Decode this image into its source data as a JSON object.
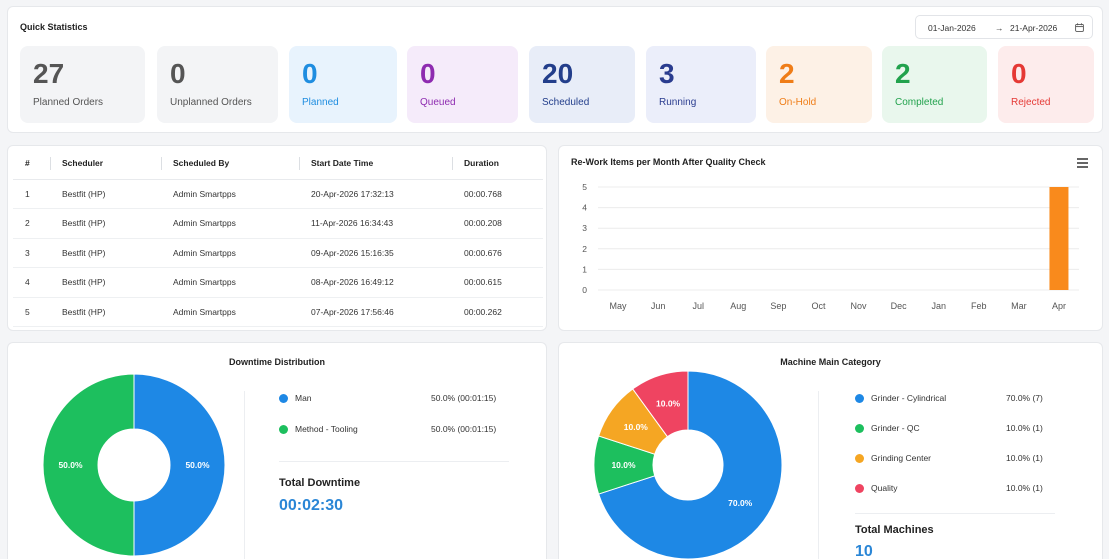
{
  "quick_stats": {
    "title": "Quick Statistics",
    "date_from": "01-Jan-2026",
    "arrow": "→",
    "date_to": "21-Apr-2026",
    "tiles": [
      {
        "value": "27",
        "label": "Planned Orders",
        "color": "#555555",
        "bg": "#f3f4f6"
      },
      {
        "value": "0",
        "label": "Unplanned Orders",
        "color": "#555555",
        "bg": "#f3f4f6"
      },
      {
        "value": "0",
        "label": "Planned",
        "color": "#1f8de0",
        "bg": "#e8f3fd"
      },
      {
        "value": "0",
        "label": "Queued",
        "color": "#8e2bb0",
        "bg": "#f5ebfa"
      },
      {
        "value": "20",
        "label": "Scheduled",
        "color": "#233e8b",
        "bg": "#e8edf8"
      },
      {
        "value": "3",
        "label": "Running",
        "color": "#2a3c8f",
        "bg": "#ebeefa"
      },
      {
        "value": "2",
        "label": "On-Hold",
        "color": "#ef7d18",
        "bg": "#fdf1e6"
      },
      {
        "value": "2",
        "label": "Completed",
        "color": "#22a24d",
        "bg": "#e9f7ed"
      },
      {
        "value": "0",
        "label": "Rejected",
        "color": "#e53935",
        "bg": "#fdecec"
      }
    ]
  },
  "scheduler_table": {
    "headers": [
      "#",
      "Scheduler",
      "Scheduled By",
      "Start Date Time",
      "Duration"
    ],
    "rows": [
      [
        "1",
        "Bestfit (HP)",
        "Admin Smartpps",
        "20-Apr-2026 17:32:13",
        "00:00.768"
      ],
      [
        "2",
        "Bestfit (HP)",
        "Admin Smartpps",
        "11-Apr-2026 16:34:43",
        "00:00.208"
      ],
      [
        "3",
        "Bestfit (HP)",
        "Admin Smartpps",
        "09-Apr-2026 15:16:35",
        "00:00.676"
      ],
      [
        "4",
        "Bestfit (HP)",
        "Admin Smartpps",
        "08-Apr-2026 16:49:12",
        "00:00.615"
      ],
      [
        "5",
        "Bestfit (HP)",
        "Admin Smartpps",
        "07-Apr-2026 17:56:46",
        "00:00.262"
      ]
    ]
  },
  "rework_chart": {
    "menu_icon": "hamburger-menu-icon",
    "chart_data": {
      "type": "bar",
      "title": "Re-Work Items per Month After Quality Check",
      "categories": [
        "May",
        "Jun",
        "Jul",
        "Aug",
        "Sep",
        "Oct",
        "Nov",
        "Dec",
        "Jan",
        "Feb",
        "Mar",
        "Apr"
      ],
      "values": [
        0,
        0,
        0,
        0,
        0,
        0,
        0,
        0,
        0,
        0,
        0,
        5
      ],
      "ylim": [
        0,
        5
      ],
      "yticks": [
        "0",
        "1",
        "2",
        "3",
        "4",
        "5"
      ],
      "bar_color": "#f98a1c",
      "grid": true
    }
  },
  "downtime": {
    "chart_data": {
      "type": "pie",
      "title": "Downtime Distribution",
      "slices": [
        {
          "name": "Man",
          "value": 50.0,
          "label": "50.0%",
          "legend_value": "50.0% (00:01:15)",
          "color": "#1e88e5"
        },
        {
          "name": "Method - Tooling",
          "value": 50.0,
          "label": "50.0%",
          "legend_value": "50.0% (00:01:15)",
          "color": "#1dbf5e"
        }
      ]
    },
    "total_label": "Total Downtime",
    "total_value": "00:02:30"
  },
  "machines": {
    "chart_data": {
      "type": "pie",
      "title": "Machine Main Category",
      "slices": [
        {
          "name": "Grinder - Cylindrical",
          "value": 70.0,
          "label": "70.0%",
          "legend_value": "70.0% (7)",
          "color": "#1e88e5"
        },
        {
          "name": "Grinder - QC",
          "value": 10.0,
          "label": "10.0%",
          "legend_value": "10.0% (1)",
          "color": "#1dbf5e"
        },
        {
          "name": "Grinding Center",
          "value": 10.0,
          "label": "10.0%",
          "legend_value": "10.0% (1)",
          "color": "#f5a623"
        },
        {
          "name": "Quality",
          "value": 10.0,
          "label": "10.0%",
          "legend_value": "10.0% (1)",
          "color": "#ef4461"
        }
      ]
    },
    "total_label": "Total Machines",
    "total_value": "10"
  }
}
